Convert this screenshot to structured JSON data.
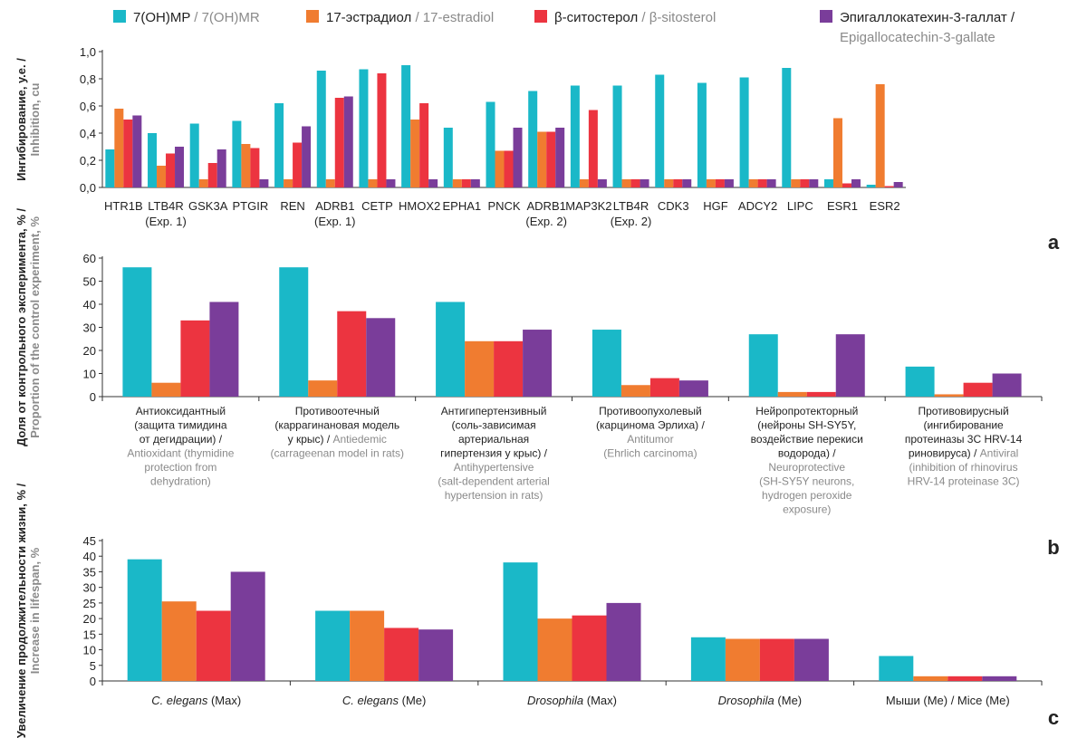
{
  "legend": [
    {
      "ru": "7(OH)MP",
      "en": "7(OH)MR",
      "color": "#1ab8c8"
    },
    {
      "ru": "17-эстрадиол",
      "en": "17-estradiol",
      "color": "#f07c30"
    },
    {
      "ru": "β-ситостерол",
      "en": "β-sitosterol",
      "color": "#ec3440"
    },
    {
      "ru": "Эпигаллокатехин-3-галлат /",
      "en": "Epigallocatechin-3-gallate",
      "color": "#7a3d9a"
    }
  ],
  "chart_data": [
    {
      "panel": "a",
      "type": "bar",
      "ylabel_ru": "Ингибирование, у.е. /",
      "ylabel_en": "Inhibition, cu",
      "ylim": [
        0,
        1.0
      ],
      "yticks": [
        "0,0",
        "0,2",
        "0,4",
        "0,6",
        "0,8",
        "1,0"
      ],
      "categories": [
        [
          "HTR1B"
        ],
        [
          "LTB4R",
          "(Exp. 1)"
        ],
        [
          "GSK3A"
        ],
        [
          "PTGIR"
        ],
        [
          "REN"
        ],
        [
          "ADRB1",
          "(Exp. 1)"
        ],
        [
          "CETP"
        ],
        [
          "HMOX2"
        ],
        [
          "EPHA1"
        ],
        [
          "PNCK"
        ],
        [
          "ADRB1",
          "(Exp. 2)"
        ],
        [
          "MAP3K2"
        ],
        [
          "LTB4R",
          "(Exp. 2)"
        ],
        [
          "CDK3"
        ],
        [
          "HGF"
        ],
        [
          "ADCY2"
        ],
        [
          "LIPC"
        ],
        [
          "ESR1"
        ],
        [
          "ESR2"
        ]
      ],
      "series": [
        {
          "values": [
            0.28,
            0.4,
            0.47,
            0.49,
            0.62,
            0.86,
            0.87,
            0.9,
            0.44,
            0.63,
            0.71,
            0.75,
            0.75,
            0.83,
            0.77,
            0.81,
            0.88,
            0.06,
            0.02
          ]
        },
        {
          "values": [
            0.58,
            0.16,
            0.06,
            0.32,
            0.06,
            0.06,
            0.06,
            0.5,
            0.06,
            0.27,
            0.41,
            0.06,
            0.06,
            0.06,
            0.06,
            0.06,
            0.06,
            0.51,
            0.76
          ]
        },
        {
          "values": [
            0.5,
            0.25,
            0.18,
            0.29,
            0.33,
            0.66,
            0.84,
            0.62,
            0.06,
            0.27,
            0.41,
            0.57,
            0.06,
            0.06,
            0.06,
            0.06,
            0.06,
            0.03,
            0.01
          ]
        },
        {
          "values": [
            0.53,
            0.3,
            0.28,
            0.06,
            0.45,
            0.67,
            0.06,
            0.06,
            0.06,
            0.44,
            0.44,
            0.06,
            0.06,
            0.06,
            0.06,
            0.06,
            0.06,
            0.06,
            0.04
          ]
        }
      ]
    },
    {
      "panel": "b",
      "type": "bar",
      "ylabel_ru": "Доля от контрольного эксперимента, % /",
      "ylabel_en": "Proportion of the control experiment, %",
      "ylim": [
        0,
        60
      ],
      "yticks": [
        "0",
        "10",
        "20",
        "30",
        "40",
        "50",
        "60"
      ],
      "categories": [
        {
          "ru": [
            "Антиоксидантный",
            "(защита тимидина",
            "от дегидрации) /"
          ],
          "en": [
            "Antioxidant (thymidine",
            "protection from",
            "dehydration)"
          ]
        },
        {
          "ru": [
            "Противоотечный",
            "(каррагинановая модель"
          ],
          "mixed": [
            "у крыс) / ",
            "Antiedemic"
          ],
          "en": [
            "(carrageenan model in rats)"
          ]
        },
        {
          "ru": [
            "Антигипертензивный",
            "(соль-зависимая",
            "артериальная",
            "гипертензия у крыс) /"
          ],
          "en": [
            "Antihypertensive",
            "(salt-dependent arterial",
            "hypertension in rats)"
          ]
        },
        {
          "ru": [
            "Противоопухолевый",
            "(карцинома Эрлиха) /"
          ],
          "en": [
            "Antitumor",
            "(Ehrlich carcinoma)"
          ]
        },
        {
          "ru": [
            "Нейропротекторный",
            "(нейроны SH-SY5Y,",
            "воздействие перекиси",
            "водорода) /"
          ],
          "en": [
            "Neuroprotective",
            "(SH-SY5Y neurons,",
            "hydrogen peroxide",
            "exposure)"
          ]
        },
        {
          "ru": [
            "Противовирусный",
            "(ингибирование",
            "протеиназы 3C HRV-14"
          ],
          "mixed": [
            "риновируса) / ",
            "Antiviral"
          ],
          "en": [
            "(inhibition of rhinovirus",
            "HRV-14 proteinase 3C)"
          ]
        }
      ],
      "series": [
        {
          "values": [
            56,
            56,
            41,
            29,
            27,
            13
          ]
        },
        {
          "values": [
            6,
            7,
            24,
            5,
            2,
            1
          ]
        },
        {
          "values": [
            33,
            37,
            24,
            8,
            2,
            6
          ]
        },
        {
          "values": [
            41,
            34,
            29,
            7,
            27,
            10
          ]
        }
      ]
    },
    {
      "panel": "c",
      "type": "bar",
      "ylabel_ru": "Увеличение продолжительности жизни, % /",
      "ylabel_en": "Increase in lifespan, %",
      "ylim": [
        0,
        45
      ],
      "yticks": [
        "0",
        "5",
        "10",
        "15",
        "20",
        "25",
        "30",
        "35",
        "40",
        "45"
      ],
      "categories": [
        {
          "italic": "C. elegans",
          "rest": " (Max)"
        },
        {
          "italic": "C. elegans",
          "rest": " (Me)"
        },
        {
          "italic": "Drosophila",
          "rest": " (Max)"
        },
        {
          "italic": "Drosophila",
          "rest": " (Me)"
        },
        {
          "italic": "",
          "rest": "Мыши (Me) / Mice (Me)"
        }
      ],
      "series": [
        {
          "values": [
            39,
            22.5,
            38,
            14,
            8
          ]
        },
        {
          "values": [
            25.5,
            22.5,
            20,
            13.5,
            1.5
          ]
        },
        {
          "values": [
            22.5,
            17,
            21,
            13.5,
            1.5
          ]
        },
        {
          "values": [
            35,
            16.5,
            25,
            13.5,
            1.5
          ]
        }
      ]
    }
  ],
  "panel_letters": [
    "a",
    "b",
    "c"
  ]
}
